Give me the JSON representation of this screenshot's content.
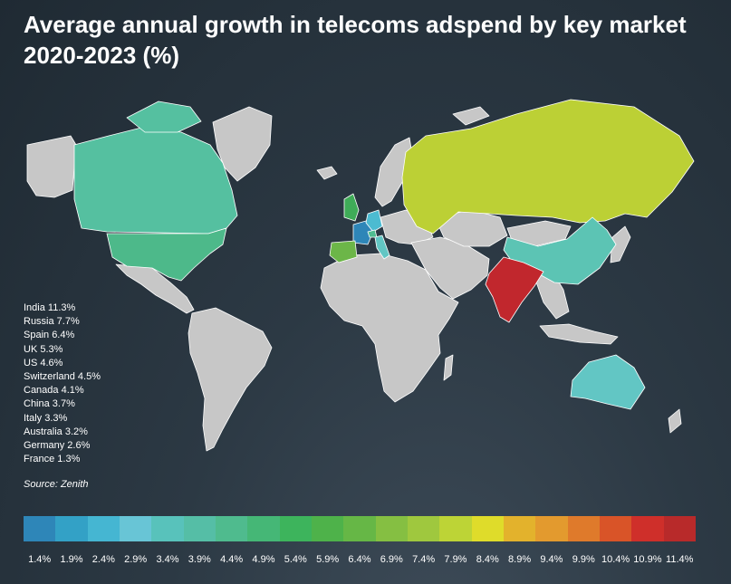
{
  "title": "Average annual growth in telecoms adspend by key market 2020-2023 (%)",
  "source": "Source: Zenith",
  "markets": [
    {
      "label": "India 11.3%",
      "country": "India",
      "value": 11.3,
      "color": "#c1272d"
    },
    {
      "label": "Russia 7.7%",
      "country": "Russia",
      "value": 7.7,
      "color": "#bcd035"
    },
    {
      "label": "Spain 6.4%",
      "country": "Spain",
      "value": 6.4,
      "color": "#6cb648"
    },
    {
      "label": "UK 5.3%",
      "country": "UK",
      "value": 5.3,
      "color": "#3fac58"
    },
    {
      "label": "US 4.6%",
      "country": "US",
      "value": 4.6,
      "color": "#4db98a"
    },
    {
      "label": "Switzerland 4.5%",
      "country": "Switzerland",
      "value": 4.5,
      "color": "#4fbc90"
    },
    {
      "label": "Canada 4.1%",
      "country": "Canada",
      "value": 4.1,
      "color": "#55c0a0"
    },
    {
      "label": "China 3.7%",
      "country": "China",
      "value": 3.7,
      "color": "#5cc4b4"
    },
    {
      "label": "Italy 3.3%",
      "country": "Italy",
      "value": 3.3,
      "color": "#62c6c4"
    },
    {
      "label": "Australia 3.2%",
      "country": "Australia",
      "value": 3.2,
      "color": "#62c6c4"
    },
    {
      "label": "Germany 2.6%",
      "country": "Germany",
      "value": 2.6,
      "color": "#4cbbd1"
    },
    {
      "label": "France 1.3%",
      "country": "France",
      "value": 1.3,
      "color": "#2e86b8"
    }
  ],
  "scale": {
    "ticks": [
      "1.4%",
      "1.9%",
      "2.4%",
      "2.9%",
      "3.4%",
      "3.9%",
      "4.4%",
      "4.9%",
      "5.4%",
      "5.9%",
      "6.4%",
      "6.9%",
      "7.4%",
      "7.9%",
      "8.4%",
      "8.9%",
      "9.4%",
      "9.9%",
      "10.4%",
      "10.9%",
      "11.4%"
    ],
    "colors": [
      "#2e86b8",
      "#33a1c6",
      "#45b6d2",
      "#68c5d6",
      "#58c2bb",
      "#55bea6",
      "#4fbb8e",
      "#45b776",
      "#3db45c",
      "#4eb24a",
      "#66b746",
      "#85bf42",
      "#9fc83e",
      "#bdd436",
      "#dfdc2a",
      "#e3b22c",
      "#e39a2e",
      "#df7a2b",
      "#d95428",
      "#cf2f2a",
      "#b82a2a"
    ]
  },
  "map_colors": {
    "land": "#c7c7c7",
    "border": "#ffffff"
  }
}
